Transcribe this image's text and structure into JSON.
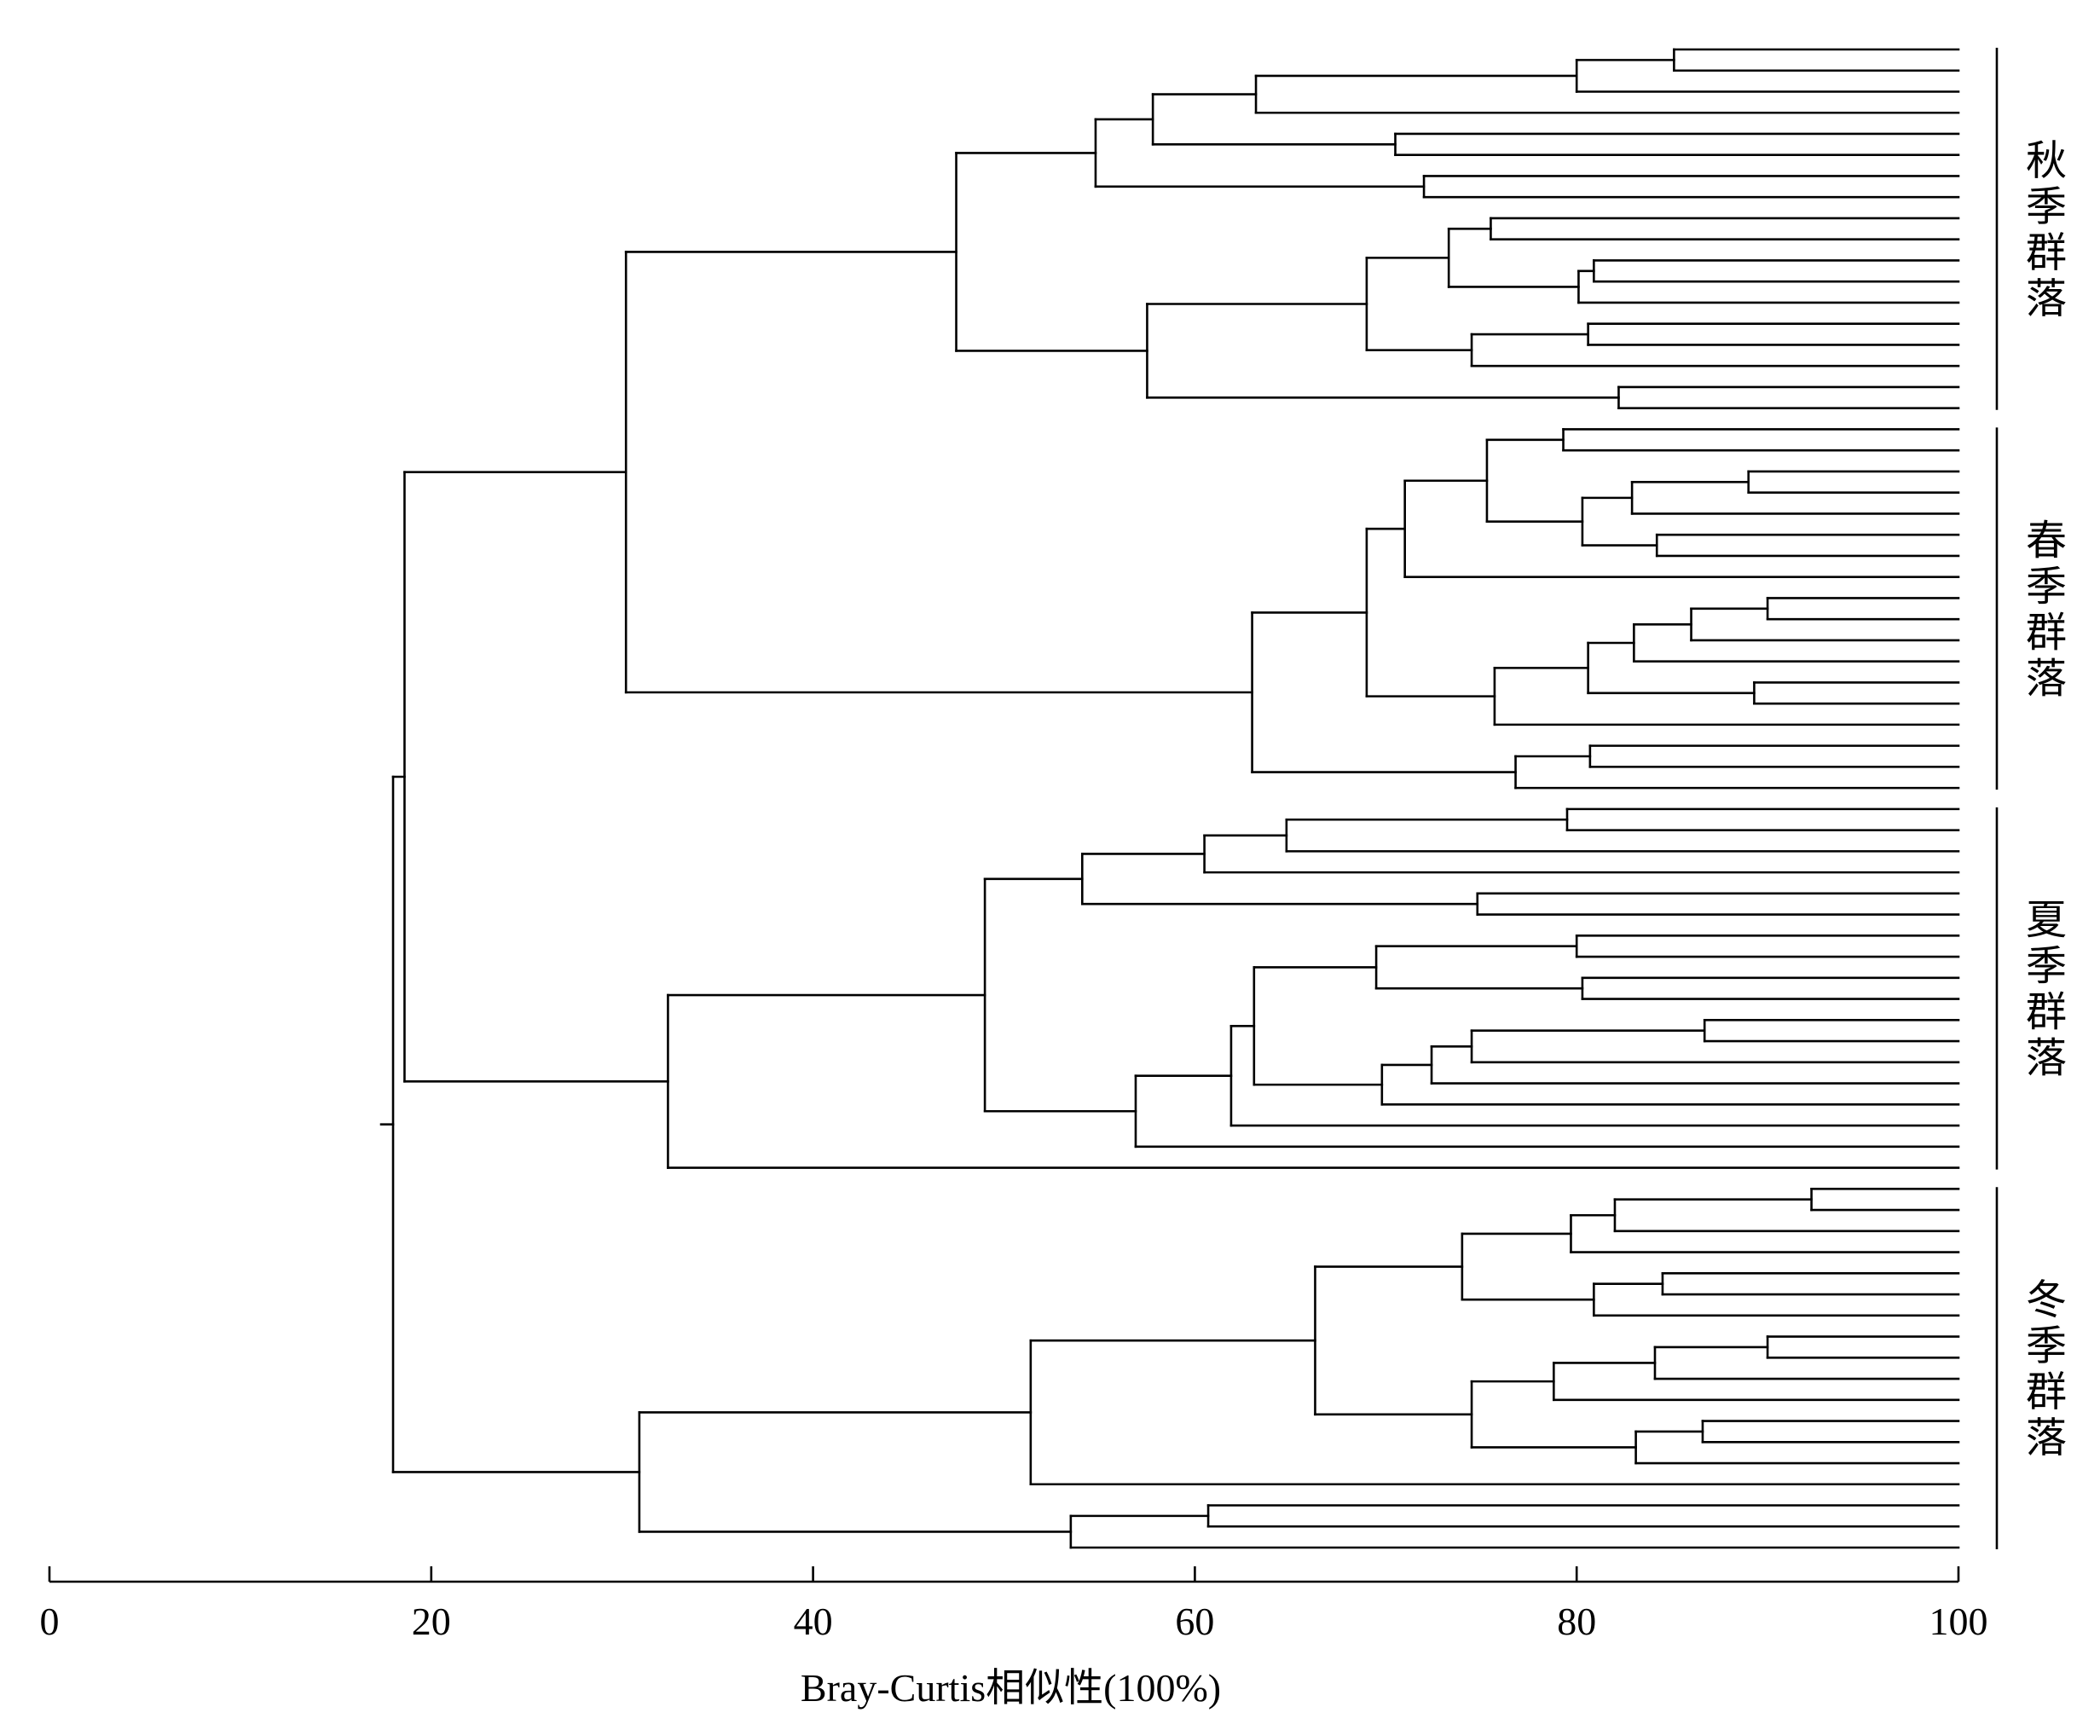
{
  "diagram": {
    "type": "dendrogram",
    "orientation": "horizontal, leaves on the right at 100",
    "line_color": "#000000",
    "background": "#ffffff"
  },
  "axis": {
    "title": "Bray-Curtis相似性(100%)",
    "min": 0,
    "max": 100,
    "ticks": [
      {
        "value": 0,
        "label": "0"
      },
      {
        "value": 20,
        "label": "20"
      },
      {
        "value": 40,
        "label": "40"
      },
      {
        "value": 60,
        "label": "60"
      },
      {
        "value": 80,
        "label": "80"
      },
      {
        "value": 100,
        "label": "100"
      }
    ]
  },
  "groups": [
    {
      "label": "秋季群落",
      "first_leaf": 0,
      "last_leaf": 17
    },
    {
      "label": "春季群落",
      "first_leaf": 18,
      "last_leaf": 35
    },
    {
      "label": "夏季群落",
      "first_leaf": 36,
      "last_leaf": 53
    },
    {
      "label": "冬季群落",
      "first_leaf": 54,
      "last_leaf": 71
    }
  ],
  "leaf_count": 72,
  "tree": [
    "n",
    18.0,
    [
      [
        "n",
        18.6,
        [
          [
            "n",
            30.2,
            [
              [
                "n",
                47.5,
                [
                  [
                    "n",
                    54.8,
                    [
                      [
                        "n",
                        57.8,
                        [
                          [
                            "n",
                            63.2,
                            [
                              [
                                "n",
                                80.0,
                                [
                                  [
                                    "n",
                                    85.1,
                                    [
                                      0,
                                      1
                                    ]
                                  ],
                                  2
                                ]
                              ],
                              3
                            ]
                          ],
                          [
                            "n",
                            70.5,
                            [
                              4,
                              5
                            ]
                          ]
                        ]
                      ],
                      [
                        "n",
                        72.0,
                        [
                          6,
                          7
                        ]
                      ]
                    ]
                  ],
                  [
                    "n",
                    57.5,
                    [
                      [
                        "n",
                        69.0,
                        [
                          [
                            "n",
                            73.3,
                            [
                              [
                                "n",
                                75.5,
                                [
                                  8,
                                  9
                                ]
                              ],
                              [
                                "n",
                                80.1,
                                [
                                  [
                                    "n",
                                    80.9,
                                    [
                                      10,
                                      11
                                    ]
                                  ],
                                  12
                                ]
                              ]
                            ]
                          ],
                          [
                            "n",
                            74.5,
                            [
                              [
                                "n",
                                80.6,
                                [
                                  13,
                                  14
                                ]
                              ],
                              15
                            ]
                          ]
                        ]
                      ],
                      [
                        "n",
                        82.2,
                        [
                          16,
                          17
                        ]
                      ]
                    ]
                  ]
                ]
              ],
              [
                "n",
                63.0,
                [
                  [
                    "n",
                    69.0,
                    [
                      [
                        "n",
                        71.0,
                        [
                          [
                            "n",
                            75.3,
                            [
                              [
                                "n",
                                79.3,
                                [
                                  18,
                                  19
                                ]
                              ],
                              [
                                "n",
                                80.3,
                                [
                                  [
                                    "n",
                                    82.9,
                                    [
                                      [
                                        "n",
                                        89.0,
                                        [
                                          20,
                                          21
                                        ]
                                      ],
                                      22
                                    ]
                                  ],
                                  [
                                    "n",
                                    84.2,
                                    [
                                      23,
                                      24
                                    ]
                                  ]
                                ]
                              ]
                            ]
                          ],
                          25
                        ]
                      ],
                      [
                        "n",
                        75.7,
                        [
                          [
                            "n",
                            80.6,
                            [
                              [
                                "n",
                                83.0,
                                [
                                  [
                                    "n",
                                    86.0,
                                    [
                                      [
                                        "n",
                                        90.0,
                                        [
                                          26,
                                          27
                                        ]
                                      ],
                                      28
                                    ]
                                  ],
                                  29
                                ]
                              ],
                              [
                                "n",
                                89.3,
                                [
                                  30,
                                  31
                                ]
                              ]
                            ]
                          ],
                          32
                        ]
                      ]
                    ]
                  ],
                  [
                    "n",
                    76.8,
                    [
                      [
                        "n",
                        80.7,
                        [
                          33,
                          34
                        ]
                      ],
                      35
                    ]
                  ]
                ]
              ]
            ]
          ],
          [
            "n",
            32.4,
            [
              [
                "n",
                49.0,
                [
                  [
                    "n",
                    54.1,
                    [
                      [
                        "n",
                        60.5,
                        [
                          [
                            "n",
                            64.8,
                            [
                              [
                                "n",
                                79.5,
                                [
                                  36,
                                  37
                                ]
                              ],
                              38
                            ]
                          ],
                          39
                        ]
                      ],
                      [
                        "n",
                        74.8,
                        [
                          40,
                          41
                        ]
                      ]
                    ]
                  ],
                  [
                    "n",
                    56.9,
                    [
                      [
                        "n",
                        61.9,
                        [
                          [
                            "n",
                            63.1,
                            [
                              [
                                "n",
                                69.5,
                                [
                                  [
                                    "n",
                                    80.0,
                                    [
                                      42,
                                      43
                                    ]
                                  ],
                                  [
                                    "n",
                                    80.3,
                                    [
                                      44,
                                      45
                                    ]
                                  ]
                                ]
                              ],
                              [
                                "n",
                                69.8,
                                [
                                  [
                                    "n",
                                    72.4,
                                    [
                                      [
                                        "n",
                                        74.5,
                                        [
                                          [
                                            "n",
                                            86.7,
                                            [
                                              46,
                                              47
                                            ]
                                          ],
                                          48
                                        ]
                                      ],
                                      49
                                    ]
                                  ],
                                  50
                                ]
                              ]
                            ]
                          ],
                          51
                        ]
                      ],
                      52
                    ]
                  ]
                ]
              ],
              53
            ]
          ]
        ]
      ],
      [
        "n",
        30.9,
        [
          [
            "n",
            51.4,
            [
              [
                "n",
                66.3,
                [
                  [
                    "n",
                    74.0,
                    [
                      [
                        "n",
                        79.7,
                        [
                          [
                            "n",
                            82.0,
                            [
                              [
                                "n",
                                92.3,
                                [
                                  54,
                                  55
                                ]
                              ],
                              56
                            ]
                          ],
                          57
                        ]
                      ],
                      [
                        "n",
                        80.9,
                        [
                          [
                            "n",
                            84.5,
                            [
                              58,
                              59
                            ]
                          ],
                          60
                        ]
                      ]
                    ]
                  ],
                  [
                    "n",
                    74.5,
                    [
                      [
                        "n",
                        78.8,
                        [
                          [
                            "n",
                            84.1,
                            [
                              [
                                "n",
                                90.0,
                                [
                                  61,
                                  62
                                ]
                              ],
                              63
                            ]
                          ],
                          64
                        ]
                      ],
                      [
                        "n",
                        83.1,
                        [
                          [
                            "n",
                            86.6,
                            [
                              65,
                              66
                            ]
                          ],
                          67
                        ]
                      ]
                    ]
                  ]
                ]
              ],
              68
            ]
          ],
          [
            "n",
            53.5,
            [
              [
                "n",
                60.7,
                [
                  69,
                  70
                ]
              ],
              71
            ]
          ]
        ]
      ]
    ]
  ]
}
